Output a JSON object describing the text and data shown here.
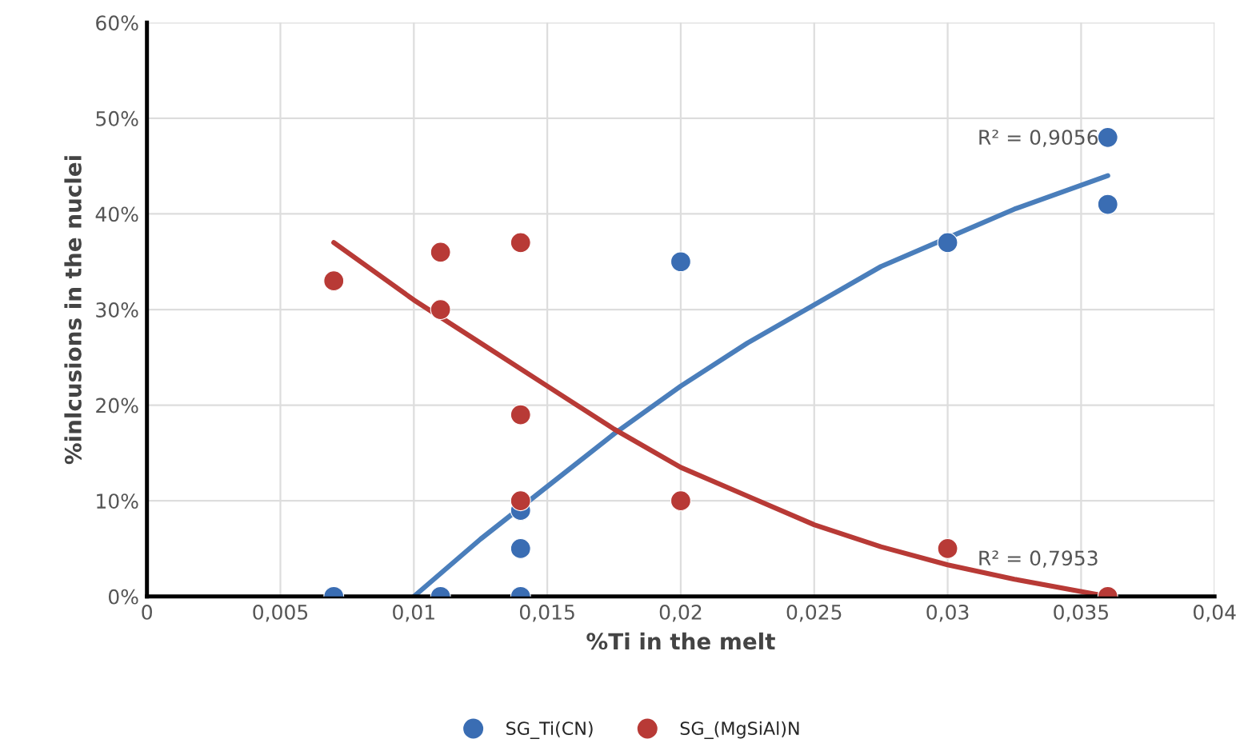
{
  "chart_data": {
    "type": "scatter",
    "xlabel": "%Ti in the melt",
    "ylabel": "%inlcusions in the nuclei",
    "series": [
      {
        "name": "SG_Ti(CN)",
        "color": "#3a6db3",
        "marker": "circle",
        "x": [
          0.007,
          0.011,
          0.014,
          0.014,
          0.014,
          0.02,
          0.03,
          0.036,
          0.036
        ],
        "values": [
          0,
          0,
          0,
          5,
          9,
          35,
          37,
          48,
          41
        ]
      },
      {
        "name": "SG_(MgSiAl)N",
        "color": "#b83a36",
        "marker": "circle",
        "x": [
          0.007,
          0.011,
          0.011,
          0.014,
          0.014,
          0.014,
          0.02,
          0.03,
          0.036
        ],
        "values": [
          33,
          36,
          30,
          37,
          19,
          10,
          10,
          5,
          0
        ]
      },
      {
        "color": "#4a7ebb",
        "type": "line",
        "marker": "none",
        "x": [
          0.01,
          0.0125,
          0.015,
          0.0175,
          0.02,
          0.0225,
          0.025,
          0.0275,
          0.03,
          0.0325,
          0.036
        ],
        "values": [
          0,
          6,
          11.5,
          17,
          22,
          26.5,
          30.5,
          34.5,
          37.5,
          40.5,
          44
        ]
      },
      {
        "color": "#b83a36",
        "type": "line",
        "marker": "none",
        "x": [
          0.007,
          0.01,
          0.0125,
          0.015,
          0.0175,
          0.02,
          0.0225,
          0.025,
          0.0275,
          0.03,
          0.0325,
          0.036
        ],
        "values": [
          37,
          31,
          26.5,
          22,
          17.5,
          13.5,
          10.5,
          7.5,
          5.2,
          3.3,
          1.8,
          0
        ]
      }
    ],
    "xlim": [
      0,
      0.04
    ],
    "ylim": [
      0,
      60
    ],
    "xticks": [
      0,
      {
        "value": 0.005,
        "label": "0,005"
      },
      {
        "value": 0.01,
        "label": "0,01"
      },
      {
        "value": 0.015,
        "label": "0,015"
      },
      {
        "value": 0.02,
        "label": "0,02"
      },
      {
        "value": 0.025,
        "label": "0,025"
      },
      {
        "value": 0.03,
        "label": "0,03"
      },
      {
        "value": 0.035,
        "label": "0,035"
      },
      {
        "value": 0.04,
        "label": "0,04"
      }
    ],
    "yticks": [
      {
        "value": 0,
        "label": "0%"
      },
      {
        "value": 10,
        "label": "10%"
      },
      {
        "value": 20,
        "label": "20%"
      },
      {
        "value": 30,
        "label": "30%"
      },
      {
        "value": 40,
        "label": "40%"
      },
      {
        "value": 50,
        "label": "50%"
      },
      {
        "value": 60,
        "label": "60%"
      }
    ],
    "annotations": [
      "R² = 0,9056",
      "R² = 0,7953"
    ],
    "grid": true,
    "legend": "bottom"
  }
}
